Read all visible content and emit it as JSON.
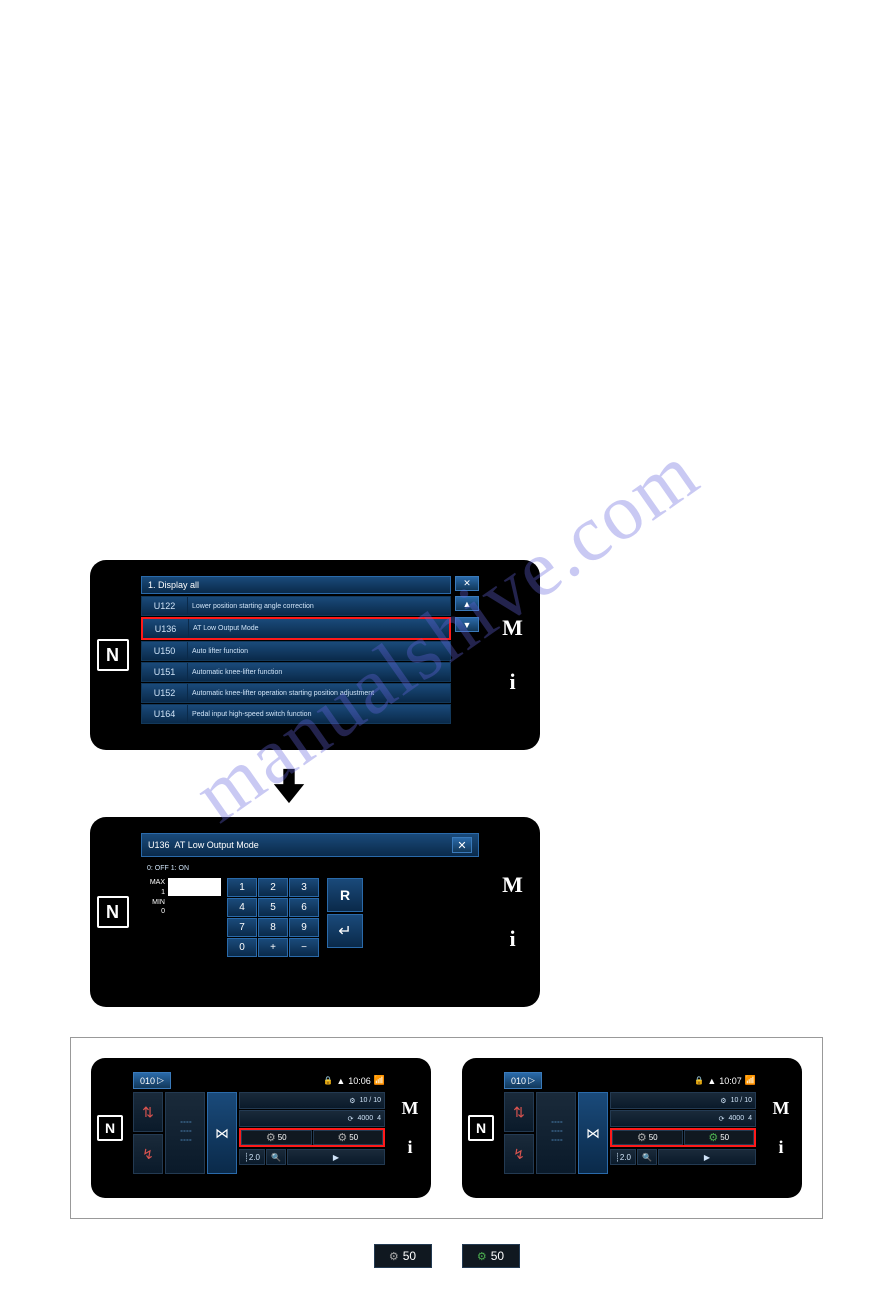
{
  "watermark": "manualshive.com",
  "panel1": {
    "header_num": "1.",
    "header_label": "Display all",
    "close": "✕",
    "items": [
      {
        "code": "U122",
        "label": "Lower position starting angle correction",
        "highlight": false
      },
      {
        "code": "U136",
        "label": "AT Low Output Mode",
        "highlight": true
      },
      {
        "code": "U150",
        "label": "Auto lifter function",
        "highlight": false
      },
      {
        "code": "U151",
        "label": "Automatic knee-lifter function",
        "highlight": false
      },
      {
        "code": "U152",
        "label": "Automatic knee-lifter operation starting position adjustment",
        "highlight": false
      },
      {
        "code": "U164",
        "label": "Pedal input high-speed switch function",
        "highlight": false
      }
    ],
    "side_m": "M",
    "side_i": "i",
    "nfc": "N"
  },
  "panel2": {
    "title_code": "U136",
    "title_label": "AT Low Output Mode",
    "close": "✕",
    "subtitle": "0: OFF  1: ON",
    "display_value": "",
    "max_label": "MAX",
    "max_val": "1",
    "min_label": "MIN",
    "min_val": "0",
    "keys": [
      "1",
      "2",
      "3",
      "4",
      "5",
      "6",
      "7",
      "8",
      "9",
      "0",
      "+",
      "−"
    ],
    "r_key": "R",
    "enter_key": "↵",
    "side_m": "M",
    "side_i": "i",
    "nfc": "N"
  },
  "sewA": {
    "id": "010",
    "time": "10:06",
    "lock": "🔒",
    "wifi": "📶",
    "nfc": "N",
    "side_m": "M",
    "side_i": "i",
    "speed": "4000",
    "top_r1": "10 / 10",
    "top_r2": "4",
    "tension_l": "50",
    "tension_r": "50",
    "pitch": "2.0",
    "play": "▶"
  },
  "sewB": {
    "id": "010",
    "time": "10:07",
    "lock": "🔒",
    "wifi": "📶",
    "nfc": "N",
    "side_m": "M",
    "side_i": "i",
    "speed": "4000",
    "top_r1": "10 / 10",
    "top_r2": "4",
    "tension_l": "50",
    "tension_r": "50",
    "pitch": "2.0",
    "play": "▶"
  },
  "glyphs": {
    "val": "50"
  },
  "colors": {
    "bg": "#ffffff",
    "device_black": "#000000",
    "panel_blue_top": "#1a4a7a",
    "panel_blue_bottom": "#0a2a4a",
    "border_blue": "#2a6aaa",
    "highlight_red": "#ff1a1a",
    "text_light": "#cfe3f7",
    "green": "#4caf50"
  }
}
